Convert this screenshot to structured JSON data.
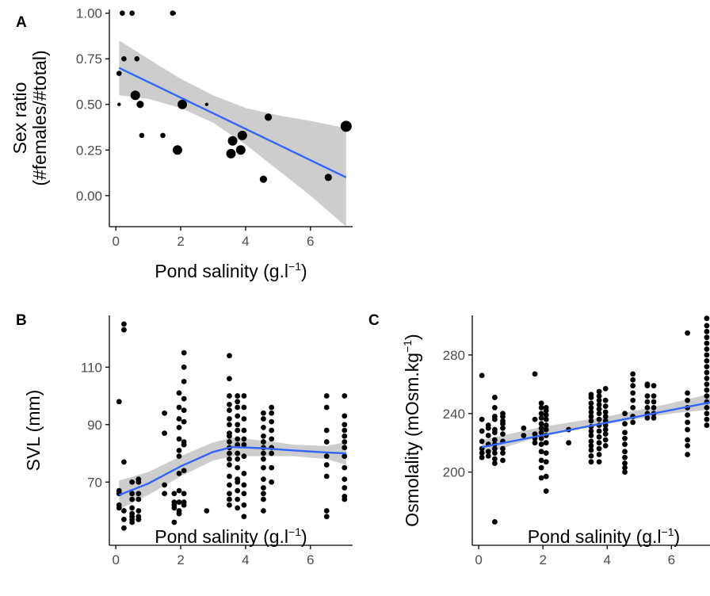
{
  "chart_data": [
    {
      "panel": "A",
      "type": "scatter",
      "xlabel": "Pond salinity (g.l",
      "xlabel_sup": "−1",
      "xlabel_end": ")",
      "ylabel": "Sex ratio",
      "ylabel2": "(#females/#total)",
      "xlim": [
        -0.2,
        7.3
      ],
      "ylim": [
        -0.17,
        1.02
      ],
      "xticks": [
        0,
        2,
        4,
        6
      ],
      "yticks": [
        0.0,
        0.25,
        0.5,
        0.75,
        1.0
      ],
      "ytick_labels": [
        "0.00",
        "0.25",
        "0.50",
        "0.75",
        "1.00"
      ],
      "grid": false,
      "fit": {
        "type": "linear",
        "color": "#3366FF",
        "x": [
          0.1,
          7.1
        ],
        "y": [
          0.7,
          0.1
        ]
      },
      "ci_band": {
        "x": [
          0.1,
          1.0,
          2.0,
          3.0,
          4.0,
          5.0,
          6.0,
          7.1
        ],
        "upper": [
          0.85,
          0.75,
          0.64,
          0.55,
          0.48,
          0.44,
          0.41,
          0.37
        ],
        "lower": [
          0.55,
          0.53,
          0.48,
          0.4,
          0.28,
          0.14,
          0.0,
          -0.17
        ]
      },
      "points": [
        {
          "x": 0.2,
          "y": 1.0,
          "size": 2
        },
        {
          "x": 0.5,
          "y": 1.0,
          "size": 2
        },
        {
          "x": 1.75,
          "y": 1.0,
          "size": 2
        },
        {
          "x": 1.8,
          "y": 1.0,
          "size": 1
        },
        {
          "x": 0.1,
          "y": 0.67,
          "size": 2
        },
        {
          "x": 0.25,
          "y": 0.75,
          "size": 2
        },
        {
          "x": 0.65,
          "y": 0.75,
          "size": 2
        },
        {
          "x": 0.1,
          "y": 0.5,
          "size": 1
        },
        {
          "x": 0.6,
          "y": 0.55,
          "size": 4
        },
        {
          "x": 0.75,
          "y": 0.5,
          "size": 3
        },
        {
          "x": 0.8,
          "y": 0.33,
          "size": 2
        },
        {
          "x": 1.45,
          "y": 0.33,
          "size": 2
        },
        {
          "x": 1.9,
          "y": 0.25,
          "size": 4
        },
        {
          "x": 2.05,
          "y": 0.5,
          "size": 4
        },
        {
          "x": 2.8,
          "y": 0.5,
          "size": 1
        },
        {
          "x": 3.55,
          "y": 0.23,
          "size": 4
        },
        {
          "x": 3.6,
          "y": 0.3,
          "size": 4
        },
        {
          "x": 3.85,
          "y": 0.25,
          "size": 4
        },
        {
          "x": 3.9,
          "y": 0.33,
          "size": 4
        },
        {
          "x": 4.55,
          "y": 0.09,
          "size": 3
        },
        {
          "x": 4.7,
          "y": 0.43,
          "size": 3
        },
        {
          "x": 6.55,
          "y": 0.1,
          "size": 3
        },
        {
          "x": 7.1,
          "y": 0.38,
          "size": 5
        }
      ]
    },
    {
      "panel": "B",
      "type": "scatter",
      "xlabel": "Pond salinity (g.l",
      "xlabel_sup": "−1",
      "xlabel_end": ")",
      "ylabel": "SVL (mm)",
      "xlim": [
        -0.2,
        7.3
      ],
      "ylim": [
        48,
        128
      ],
      "xticks": [
        0,
        2,
        4,
        6
      ],
      "yticks": [
        70,
        90,
        110
      ],
      "ytick_labels": [
        "70",
        "90",
        "110"
      ],
      "grid": false,
      "fit": {
        "type": "loess",
        "color": "#3366FF",
        "x": [
          0.1,
          1.0,
          2.0,
          3.0,
          3.6,
          4.5,
          5.5,
          6.5,
          7.1
        ],
        "y": [
          65.5,
          69.5,
          75.5,
          80.5,
          82.2,
          81.8,
          81.0,
          80.3,
          80.0
        ]
      },
      "ci_band": {
        "x": [
          0.1,
          1.0,
          2.0,
          3.0,
          3.6,
          4.5,
          5.5,
          6.5,
          7.1
        ],
        "upper": [
          70.5,
          73.5,
          79.0,
          83.8,
          85.5,
          84.5,
          83.0,
          82.5,
          84.0
        ],
        "lower": [
          60.5,
          65.5,
          72.0,
          77.5,
          79.0,
          79.0,
          79.0,
          78.0,
          76.0
        ]
      },
      "x_groups": [
        {
          "x": 0.1,
          "y": [
            98,
            67,
            66,
            62,
            61
          ]
        },
        {
          "x": 0.25,
          "y": [
            125,
            123,
            77,
            60,
            57,
            54
          ]
        },
        {
          "x": 0.5,
          "y": [
            70,
            66,
            64,
            61,
            59,
            58,
            57,
            56
          ]
        },
        {
          "x": 0.7,
          "y": [
            71,
            70,
            66,
            64,
            60,
            58,
            57,
            57
          ]
        },
        {
          "x": 1.5,
          "y": [
            94,
            87,
            69,
            66
          ]
        },
        {
          "x": 1.8,
          "y": [
            66,
            63,
            62,
            61,
            56
          ]
        },
        {
          "x": 1.95,
          "y": [
            101,
            96,
            92,
            89,
            85,
            81,
            79,
            73,
            67,
            63,
            60,
            59
          ]
        },
        {
          "x": 2.1,
          "y": [
            115,
            110,
            105,
            99,
            95,
            91,
            84,
            83,
            74,
            66,
            63,
            62
          ]
        },
        {
          "x": 2.8,
          "y": [
            60
          ]
        },
        {
          "x": 3.5,
          "y": [
            114,
            106,
            100,
            97,
            95,
            92,
            90,
            87,
            86,
            84,
            82,
            80,
            78,
            76,
            72,
            69,
            66,
            64,
            62
          ]
        },
        {
          "x": 3.75,
          "y": [
            100,
            98,
            96,
            93,
            90,
            88,
            85,
            83,
            80,
            78,
            75,
            71,
            70,
            67,
            64,
            61
          ]
        },
        {
          "x": 3.95,
          "y": [
            100,
            96,
            92,
            88,
            85,
            83,
            79,
            73,
            69,
            66,
            62,
            58
          ]
        },
        {
          "x": 4.55,
          "y": [
            94,
            92,
            89,
            86,
            84,
            82,
            80,
            78,
            75,
            71,
            68,
            66,
            64,
            60
          ]
        },
        {
          "x": 4.8,
          "y": [
            96,
            94,
            91,
            88,
            85,
            82,
            80,
            75,
            70
          ]
        },
        {
          "x": 6.5,
          "y": [
            100,
            96,
            88,
            84,
            79,
            76,
            72,
            60,
            58
          ]
        },
        {
          "x": 7.05,
          "y": [
            100,
            93,
            90,
            88,
            86,
            84,
            82,
            79,
            75,
            71,
            68,
            65,
            64
          ]
        }
      ]
    },
    {
      "panel": "C",
      "type": "scatter",
      "xlabel": "Pond salinity (g.l",
      "xlabel_sup": "−1",
      "xlabel_end": ")",
      "ylabel": "Osmolality (mOsm.kg",
      "ylabel_sup": "−1",
      "ylabel_end": ")",
      "xlim": [
        -0.2,
        7.3
      ],
      "ylim": [
        150,
        307
      ],
      "xticks": [
        0,
        2,
        4,
        6
      ],
      "yticks": [
        200,
        240,
        280
      ],
      "ytick_labels": [
        "200",
        "240",
        "280"
      ],
      "grid": false,
      "fit": {
        "type": "linear",
        "color": "#3366FF",
        "x": [
          0.1,
          7.3
        ],
        "y": [
          217,
          248
        ]
      },
      "ci_band": {
        "x": [
          0.1,
          2.0,
          4.0,
          6.0,
          7.3
        ],
        "upper": [
          222,
          231,
          238,
          247,
          254
        ],
        "lower": [
          212,
          225,
          233,
          240,
          243
        ]
      },
      "x_groups": [
        {
          "x": 0.1,
          "y": [
            266,
            236,
            228,
            221,
            216,
            213,
            210
          ]
        },
        {
          "x": 0.3,
          "y": [
            232,
            230,
            225,
            219,
            214,
            211
          ]
        },
        {
          "x": 0.5,
          "y": [
            251,
            244,
            238,
            236,
            229,
            227,
            222,
            219,
            216,
            213,
            209,
            206,
            166
          ]
        },
        {
          "x": 0.75,
          "y": [
            240,
            238,
            235,
            233,
            230,
            226,
            221,
            216,
            213,
            208
          ]
        },
        {
          "x": 1.4,
          "y": [
            230,
            225
          ]
        },
        {
          "x": 1.75,
          "y": [
            267,
            236,
            226,
            223,
            220
          ]
        },
        {
          "x": 1.95,
          "y": [
            247,
            244,
            240,
            237,
            233,
            230,
            227,
            223,
            219,
            214,
            208,
            203,
            196
          ]
        },
        {
          "x": 2.1,
          "y": [
            244,
            242,
            239,
            236,
            232,
            229,
            225,
            220,
            213,
            207,
            197,
            187
          ]
        },
        {
          "x": 2.8,
          "y": [
            229,
            220
          ]
        },
        {
          "x": 3.5,
          "y": [
            253,
            251,
            247,
            244,
            241,
            238,
            235,
            231,
            228,
            225,
            221,
            218,
            215,
            211,
            207
          ]
        },
        {
          "x": 3.75,
          "y": [
            255,
            252,
            249,
            246,
            243,
            240,
            236,
            232,
            228,
            224,
            220,
            216,
            212,
            207
          ]
        },
        {
          "x": 3.95,
          "y": [
            257,
            249,
            245,
            241,
            238,
            235,
            232,
            229,
            226,
            222,
            218
          ]
        },
        {
          "x": 4.55,
          "y": [
            240,
            233,
            227,
            223,
            219,
            214,
            210,
            206,
            203,
            200
          ]
        },
        {
          "x": 4.8,
          "y": [
            267,
            263,
            259,
            254,
            249,
            244,
            238,
            234
          ]
        },
        {
          "x": 5.25,
          "y": [
            260,
            259,
            252,
            248,
            244,
            240,
            237
          ]
        },
        {
          "x": 5.45,
          "y": [
            259,
            252,
            248,
            244,
            240,
            237
          ]
        },
        {
          "x": 6.5,
          "y": [
            295,
            254,
            249,
            244,
            239,
            234,
            229,
            222,
            218,
            212
          ]
        },
        {
          "x": 7.1,
          "y": [
            305,
            300,
            296,
            292,
            288,
            284,
            280,
            276,
            272,
            268,
            264,
            260,
            256,
            252,
            248,
            244,
            240,
            236,
            232
          ]
        }
      ]
    }
  ],
  "labels": {
    "panel_a": "A",
    "panel_b": "B",
    "panel_c": "C"
  }
}
